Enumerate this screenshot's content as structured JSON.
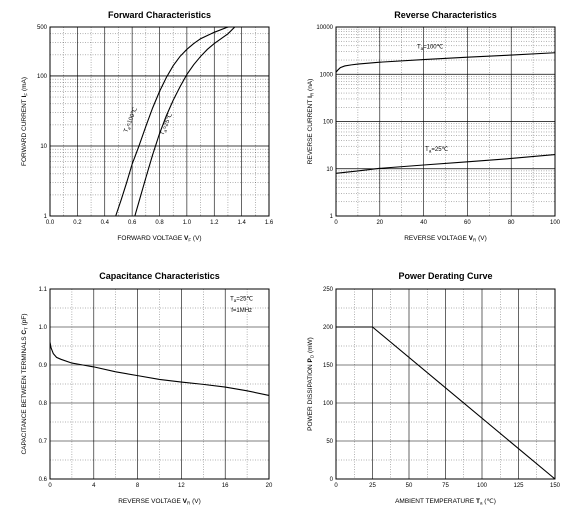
{
  "chart_data": [
    {
      "type": "line",
      "title": "Forward Characteristics",
      "xlabel": "FORWARD VOLTAGE",
      "xsymbol": "V",
      "xsub": "F",
      "xunit": "(V)",
      "ylabel": "FORWARD CURRENT",
      "ysymbol": "I",
      "ysub": "F",
      "yunit": "(mA)",
      "xlim": [
        0,
        1.6
      ],
      "ylim": [
        1,
        500
      ],
      "yscale": "log",
      "xticks": [
        "0.0",
        "0.2",
        "0.4",
        "0.6",
        "0.8",
        "1.0",
        "1.2",
        "1.4",
        "1.6"
      ],
      "yticks": [
        "1",
        "10",
        "100",
        "500"
      ],
      "grid": true,
      "series": [
        {
          "name": "Ta=100℃",
          "x": [
            0.48,
            0.52,
            0.56,
            0.6,
            0.65,
            0.7,
            0.75,
            0.8,
            0.85,
            0.9,
            0.95,
            1.0,
            1.05,
            1.1,
            1.2,
            1.3
          ],
          "y": [
            1,
            1.7,
            3,
            5.5,
            10,
            19,
            35,
            60,
            95,
            140,
            190,
            240,
            290,
            340,
            420,
            500
          ]
        },
        {
          "name": "Ta=25℃",
          "x": [
            0.62,
            0.65,
            0.7,
            0.75,
            0.8,
            0.85,
            0.9,
            0.95,
            1.0,
            1.05,
            1.1,
            1.15,
            1.2,
            1.25,
            1.3,
            1.35
          ],
          "y": [
            1,
            1.6,
            3.5,
            7.5,
            15,
            27,
            45,
            70,
            105,
            145,
            190,
            240,
            290,
            340,
            400,
            500
          ]
        }
      ],
      "annotations": [
        {
          "sym": "T",
          "sub": "a",
          "rest": "=100℃",
          "x": 0.6,
          "y": 23
        },
        {
          "sym": "T",
          "sub": "a",
          "rest": "=25℃",
          "x": 0.86,
          "y": 20
        }
      ]
    },
    {
      "type": "line",
      "title": "Reverse Characteristics",
      "xlabel": "REVERSE VOLTAGE",
      "xsymbol": "V",
      "xsub": "R",
      "xunit": "(V)",
      "ylabel": "REVERSE CURRENT",
      "ysymbol": "I",
      "ysub": "R",
      "yunit": "(nA)",
      "xlim": [
        0,
        100
      ],
      "ylim": [
        1,
        10000
      ],
      "yscale": "log",
      "xticks": [
        "0",
        "20",
        "40",
        "60",
        "80",
        "100"
      ],
      "yticks": [
        "1",
        "10",
        "100",
        "1000",
        "10000"
      ],
      "grid": true,
      "series": [
        {
          "name": "Ta=100℃",
          "x": [
            0,
            1,
            2,
            4,
            7,
            10,
            20,
            40,
            60,
            80,
            100
          ],
          "y": [
            1100,
            1250,
            1380,
            1500,
            1580,
            1640,
            1800,
            2050,
            2300,
            2550,
            2850
          ]
        },
        {
          "name": "Ta=25℃",
          "x": [
            0,
            10,
            20,
            40,
            60,
            80,
            100
          ],
          "y": [
            8,
            9,
            10.2,
            12,
            14,
            16.5,
            20
          ]
        }
      ],
      "annotations": [
        {
          "sym": "T",
          "sub": "a",
          "rest": "=100℃",
          "x": 43,
          "y": 3500
        },
        {
          "sym": "T",
          "sub": "a",
          "rest": "=25℃",
          "x": 46,
          "y": 24
        }
      ]
    },
    {
      "type": "line",
      "title": "Capacitance Characteristics",
      "xlabel": "REVERSE VOLTAGE",
      "xsymbol": "V",
      "xsub": "R",
      "xunit": "(V)",
      "ylabel": "CAPACITANCE BETWEEN TERMINALS",
      "ysymbol": "C",
      "ysub": "T",
      "yunit": "(pF)",
      "xlim": [
        0,
        20
      ],
      "ylim": [
        0.6,
        1.1
      ],
      "yscale": "linear",
      "xticks": [
        "0",
        "4",
        "8",
        "12",
        "16",
        "20"
      ],
      "yticks": [
        "0.6",
        "0.7",
        "0.8",
        "0.9",
        "1.0",
        "1.1"
      ],
      "grid": true,
      "series": [
        {
          "name": "CT",
          "x": [
            0,
            0.1,
            0.3,
            0.6,
            1,
            2,
            3,
            4,
            6,
            8,
            10,
            12,
            14,
            16,
            18,
            20
          ],
          "y": [
            0.96,
            0.945,
            0.93,
            0.92,
            0.915,
            0.905,
            0.9,
            0.895,
            0.882,
            0.872,
            0.862,
            0.855,
            0.849,
            0.842,
            0.832,
            0.82
          ]
        }
      ],
      "annotations": [
        {
          "sym": "T",
          "sub": "a",
          "rest": "=25℃",
          "x": 17.5,
          "y": 1.07
        },
        {
          "sym": "",
          "sub": "",
          "rest": "f=1MHz",
          "x": 17.5,
          "y": 1.04
        }
      ]
    },
    {
      "type": "line",
      "title": "Power Derating Curve",
      "xlabel": "AMBIENT TEMPERATURE",
      "xsymbol": "T",
      "xsub": "a",
      "xunit": "(℃)",
      "ylabel": "POWER DISSIPATION",
      "ysymbol": "P",
      "ysub": "D",
      "yunit": "(mW)",
      "xlim": [
        0,
        150
      ],
      "ylim": [
        0,
        250
      ],
      "yscale": "linear",
      "xticks": [
        "0",
        "25",
        "50",
        "75",
        "100",
        "125",
        "150"
      ],
      "yticks": [
        "0",
        "50",
        "100",
        "150",
        "200",
        "250"
      ],
      "grid": true,
      "series": [
        {
          "name": "PD",
          "x": [
            0,
            25,
            150
          ],
          "y": [
            200,
            200,
            0
          ]
        }
      ],
      "annotations": []
    }
  ]
}
